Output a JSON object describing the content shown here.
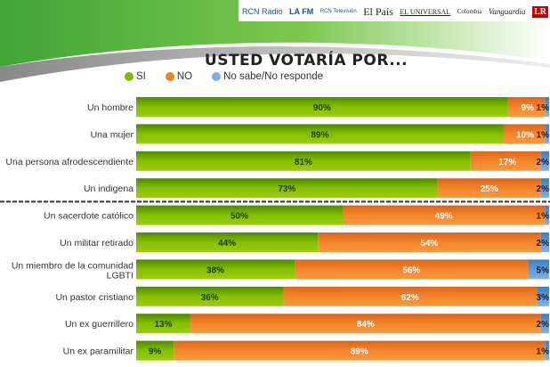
{
  "logos": [
    "RCN Radio",
    "LA FM",
    "RCN Televisión",
    "El País",
    "EL UNIVERSAL",
    "Colombia",
    "Vanguardia",
    "LR"
  ],
  "colors": {
    "si": "#7fb800",
    "no": "#f5821f",
    "ns": "#5b9bd5",
    "banner": "#5cb82e"
  },
  "chart_data": {
    "type": "bar",
    "orientation": "horizontal",
    "stacked": true,
    "title": "USTED VOTARÍA POR...",
    "legend_placement": "top",
    "categories": [
      "Un hombre",
      "Una mujer",
      "Una persona afrodescendiente",
      "Un indigena",
      "Un sacerdote católico",
      "Un militar retirado",
      "Un miembro de la comunidad LGBTI",
      "Un pastor cristiano",
      "Un ex guerrillero",
      "Un ex paramilitar"
    ],
    "series": [
      {
        "name": "SI",
        "values": [
          90,
          89,
          81,
          73,
          50,
          44,
          38,
          36,
          13,
          9
        ]
      },
      {
        "name": "NO",
        "values": [
          9,
          10,
          17,
          25,
          49,
          54,
          56,
          62,
          84,
          89
        ]
      },
      {
        "name": "No sabe/No responde",
        "values": [
          1,
          1,
          2,
          2,
          1,
          2,
          5,
          3,
          2,
          1
        ]
      }
    ],
    "xlim": [
      0,
      100
    ],
    "separator_after_index": 3
  }
}
